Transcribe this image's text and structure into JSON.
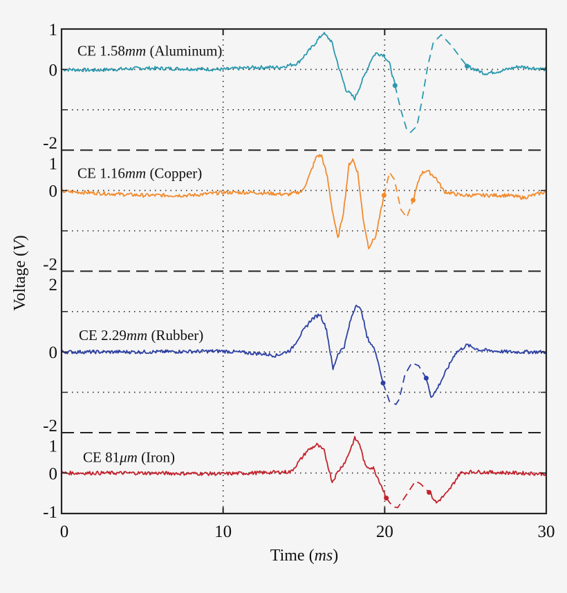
{
  "chart_data": {
    "type": "line",
    "xlabel": {
      "text": "Time (",
      "unit": "ms",
      "close": ")"
    },
    "ylabel": {
      "text": "Voltage (",
      "unit": "V",
      "close": ")"
    },
    "xlim": [
      0,
      30
    ],
    "xticks": [
      0,
      10,
      20,
      30
    ],
    "grid": "dotted at t=10 and t=20 and at unit voltage levels",
    "colors": {
      "aluminum": "#2a98ae",
      "copper": "#f28a2c",
      "rubber": "#2d40a3",
      "iron": "#c4222c"
    },
    "panels": [
      {
        "name": "aluminum",
        "label": {
          "prefix": "CE 1.58",
          "unit": "mm",
          "suffix": " (Aluminum)"
        },
        "ylim": [
          -2,
          1
        ],
        "yticks": [
          "1",
          "0",
          "-2"
        ],
        "ytick_values": [
          1,
          0,
          -2
        ],
        "grid_levels": [
          0,
          -1
        ],
        "solid_before": [
          [
            0,
            0
          ],
          [
            2,
            -0.02
          ],
          [
            5,
            0.03
          ],
          [
            7,
            0.02
          ],
          [
            10,
            0.0
          ],
          [
            12,
            0.05
          ],
          [
            13.5,
            0.05
          ],
          [
            14.6,
            0.15
          ],
          [
            15.4,
            0.5
          ],
          [
            16.2,
            0.9
          ],
          [
            16.7,
            0.7
          ],
          [
            17.2,
            0
          ],
          [
            17.6,
            -0.5
          ],
          [
            18.15,
            -0.72
          ],
          [
            18.75,
            -0.15
          ],
          [
            19.2,
            0.27
          ],
          [
            19.45,
            0.4
          ],
          [
            19.95,
            0.36
          ],
          [
            20.3,
            0.14
          ],
          [
            20.64,
            -0.4
          ]
        ],
        "dashed": [
          [
            20.64,
            -0.4
          ],
          [
            21.0,
            -1.0
          ],
          [
            21.37,
            -1.5
          ],
          [
            21.6,
            -1.56
          ],
          [
            22.0,
            -1.4
          ],
          [
            22.3,
            -0.78
          ],
          [
            22.66,
            0.07
          ],
          [
            23.0,
            0.65
          ],
          [
            23.5,
            0.86
          ],
          [
            24.15,
            0.58
          ],
          [
            24.67,
            0.3
          ],
          [
            25.1,
            0.08
          ]
        ],
        "solid_after": [
          [
            25.1,
            0.08
          ],
          [
            26.2,
            -0.1
          ],
          [
            27.15,
            -0.04
          ],
          [
            28.3,
            0.07
          ],
          [
            30,
            0.0
          ]
        ],
        "markers": [
          [
            20.64,
            -0.4
          ],
          [
            25.1,
            0.08
          ]
        ]
      },
      {
        "name": "copper",
        "label": {
          "prefix": "CE 1.16",
          "unit": "mm",
          "suffix": " (Copper)"
        },
        "ylim": [
          -2,
          1
        ],
        "yticks": [
          "1",
          "0",
          "-2"
        ],
        "ytick_values": [
          0.8,
          0,
          -2
        ],
        "grid_levels": [
          0,
          -1
        ],
        "solid_before": [
          [
            0,
            -0.02
          ],
          [
            3,
            -0.08
          ],
          [
            5,
            -0.12
          ],
          [
            8,
            -0.12
          ],
          [
            10,
            -0.05
          ],
          [
            12,
            -0.05
          ],
          [
            14,
            -0.1
          ],
          [
            14.9,
            -0.02
          ],
          [
            15.3,
            0.33
          ],
          [
            15.8,
            0.86
          ],
          [
            16.1,
            0.86
          ],
          [
            16.45,
            0.33
          ],
          [
            16.75,
            -0.47
          ],
          [
            17.1,
            -1.2
          ],
          [
            17.45,
            -0.53
          ],
          [
            17.8,
            0.65
          ],
          [
            18.03,
            0.77
          ],
          [
            18.33,
            0.45
          ],
          [
            18.67,
            -0.7
          ],
          [
            19.0,
            -1.41
          ],
          [
            19.45,
            -1.13
          ],
          [
            19.96,
            -0.12
          ]
        ],
        "dashed": [
          [
            19.96,
            -0.12
          ],
          [
            20.3,
            0.45
          ],
          [
            20.6,
            0.27
          ],
          [
            21.0,
            -0.47
          ],
          [
            21.37,
            -0.67
          ],
          [
            21.76,
            -0.24
          ]
        ],
        "solid_after": [
          [
            21.76,
            -0.24
          ],
          [
            22.23,
            0.41
          ],
          [
            22.6,
            0.5
          ],
          [
            23.17,
            0.31
          ],
          [
            23.68,
            -0.03
          ],
          [
            24.75,
            -0.12
          ],
          [
            27.6,
            -0.12
          ],
          [
            28.6,
            -0.18
          ],
          [
            30,
            -0.03
          ]
        ],
        "markers": [
          [
            19.96,
            -0.12
          ],
          [
            21.76,
            -0.24
          ]
        ]
      },
      {
        "name": "rubber",
        "label": {
          "prefix": "CE 2.29",
          "unit": "mm",
          "suffix": " (Rubber)"
        },
        "ylim": [
          -2,
          2
        ],
        "yticks": [
          "2",
          "0",
          "-2"
        ],
        "ytick_values": [
          1.8,
          0,
          -2
        ],
        "grid_levels": [
          1,
          0,
          -1
        ],
        "solid_before": [
          [
            0,
            0
          ],
          [
            5,
            0
          ],
          [
            10,
            0.02
          ],
          [
            12.5,
            -0.05
          ],
          [
            13.3,
            -0.09
          ],
          [
            14.2,
            0.05
          ],
          [
            14.75,
            0.4
          ],
          [
            15.45,
            0.8
          ],
          [
            16.0,
            0.94
          ],
          [
            16.4,
            0.56
          ],
          [
            16.8,
            -0.43
          ],
          [
            17.1,
            -0.05
          ],
          [
            17.5,
            0.14
          ],
          [
            17.9,
            0.8
          ],
          [
            18.25,
            1.2
          ],
          [
            18.6,
            0.97
          ],
          [
            18.9,
            0.37
          ],
          [
            19.45,
            0.0
          ],
          [
            19.9,
            -0.77
          ]
        ],
        "dashed": [
          [
            19.9,
            -0.77
          ],
          [
            20.3,
            -1.23
          ],
          [
            20.7,
            -1.3
          ],
          [
            20.9,
            -1.17
          ],
          [
            21.25,
            -0.57
          ],
          [
            21.67,
            -0.27
          ],
          [
            22.1,
            -0.34
          ],
          [
            22.57,
            -0.65
          ]
        ],
        "solid_after": [
          [
            22.57,
            -0.65
          ],
          [
            22.87,
            -1.11
          ],
          [
            23.17,
            -0.97
          ],
          [
            23.9,
            -0.4
          ],
          [
            24.37,
            -0.03
          ],
          [
            25.1,
            0.17
          ],
          [
            25.87,
            0.05
          ],
          [
            27.6,
            0
          ],
          [
            30,
            0
          ]
        ],
        "markers": [
          [
            19.9,
            -0.77
          ],
          [
            22.57,
            -0.65
          ]
        ]
      },
      {
        "name": "iron",
        "label": {
          "prefix": "CE 81",
          "unit": "μm",
          "suffix": " (Iron)"
        },
        "ylim": [
          -1,
          1
        ],
        "yticks": [
          "1",
          "0",
          "-1"
        ],
        "ytick_values": [
          0.8,
          0,
          -0.95
        ],
        "grid_levels": [
          0
        ],
        "solid_before": [
          [
            0,
            0
          ],
          [
            5,
            0
          ],
          [
            10,
            -0.02
          ],
          [
            14.2,
            0.03
          ],
          [
            14.75,
            0.31
          ],
          [
            15.2,
            0.55
          ],
          [
            15.8,
            0.7
          ],
          [
            16.25,
            0.55
          ],
          [
            16.75,
            -0.22
          ],
          [
            17.1,
            0.03
          ],
          [
            17.6,
            0.31
          ],
          [
            18.15,
            0.86
          ],
          [
            18.45,
            0.72
          ],
          [
            18.8,
            0.17
          ],
          [
            19.3,
            0.12
          ],
          [
            19.8,
            -0.31
          ],
          [
            20.1,
            -0.62
          ]
        ],
        "dashed": [
          [
            20.1,
            -0.62
          ],
          [
            20.5,
            -0.83
          ],
          [
            20.8,
            -0.86
          ],
          [
            21.25,
            -0.6
          ],
          [
            21.9,
            -0.2
          ],
          [
            22.2,
            -0.26
          ],
          [
            22.75,
            -0.48
          ]
        ],
        "solid_after": [
          [
            22.75,
            -0.48
          ],
          [
            23.2,
            -0.74
          ],
          [
            23.9,
            -0.48
          ],
          [
            24.67,
            0
          ],
          [
            25.45,
            0.03
          ],
          [
            30,
            -0.02
          ]
        ],
        "markers": [
          [
            20.1,
            -0.62
          ],
          [
            22.75,
            -0.48
          ]
        ]
      }
    ]
  }
}
